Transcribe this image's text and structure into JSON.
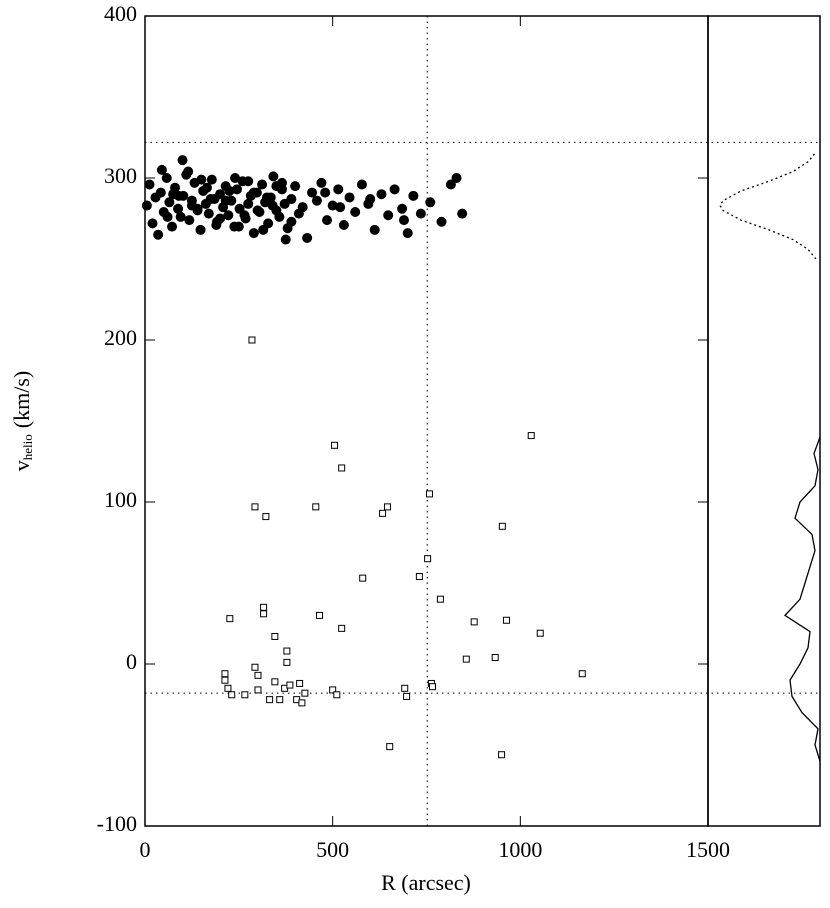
{
  "chart_data": [
    {
      "type": "scatter",
      "xlabel": "R (arcsec)",
      "ylabel": {
        "main": "v",
        "sub": "helio",
        "unit": "(km/s)"
      },
      "xlim": [
        0,
        1500
      ],
      "xticks": [
        0,
        500,
        1000,
        1500
      ],
      "ylim": [
        -100,
        400
      ],
      "yticks": [
        -100,
        0,
        100,
        200,
        300,
        400
      ],
      "hlines": [
        322,
        -18
      ],
      "vlines": [
        752
      ],
      "series": [
        {
          "color": "#000000",
          "marker": "filled-circle",
          "x": [
            5,
            12,
            20,
            28,
            35,
            42,
            50,
            58,
            65,
            72,
            80,
            88,
            95,
            102,
            110,
            118,
            125,
            132,
            140,
            148,
            155,
            162,
            170,
            178,
            185,
            192,
            200,
            208,
            215,
            222,
            230,
            238,
            245,
            252,
            260,
            268,
            275,
            282,
            290,
            298,
            305,
            312,
            320,
            328,
            335,
            342,
            350,
            358,
            365,
            372,
            380,
            390,
            400,
            410,
            420,
            432,
            445,
            458,
            470,
            485,
            500,
            515,
            530,
            545,
            560,
            578,
            595,
            612,
            630,
            648,
            665,
            685,
            700,
            715,
            735,
            760,
            790,
            815,
            845,
            45,
            75,
            100,
            125,
            150,
            175,
            200,
            225,
            250,
            275,
            300,
            325,
            350,
            375,
            60,
            90,
            115,
            140,
            165,
            190,
            215,
            240,
            265,
            290,
            315,
            340,
            365,
            390,
            480,
            520,
            600,
            690,
            830
          ],
          "values": [
            283,
            296,
            272,
            288,
            265,
            291,
            279,
            300,
            285,
            270,
            294,
            281,
            276,
            289,
            302,
            274,
            286,
            297,
            281,
            268,
            292,
            284,
            278,
            299,
            287,
            273,
            290,
            282,
            295,
            277,
            286,
            270,
            293,
            281,
            298,
            275,
            284,
            289,
            266,
            291,
            279,
            296,
            285,
            272,
            288,
            301,
            280,
            276,
            293,
            284,
            269,
            287,
            295,
            278,
            282,
            263,
            291,
            286,
            297,
            274,
            283,
            293,
            271,
            288,
            279,
            296,
            284,
            268,
            290,
            277,
            293,
            281,
            266,
            289,
            278,
            285,
            273,
            296,
            278,
            305,
            290,
            311,
            283,
            299,
            287,
            275,
            292,
            270,
            298,
            280,
            288,
            295,
            262,
            276,
            289,
            304,
            280,
            294,
            271,
            286,
            300,
            277,
            291,
            268,
            283,
            297,
            273,
            291,
            282,
            287,
            274,
            300
          ]
        },
        {
          "color": "#000000",
          "marker": "open-square",
          "x": [
            285,
            505,
            524,
            1029,
            293,
            322,
            455,
            646,
            633,
            758,
            952,
            753,
            731,
            580,
            787,
            316,
            316,
            226,
            465,
            877,
            963,
            1053,
            524,
            346,
            378,
            378,
            856,
            933,
            1165,
            213,
            213,
            221,
            231,
            266,
            293,
            301,
            301,
            346,
            359,
            332,
            372,
            386,
            412,
            426,
            404,
            418,
            500,
            511,
            692,
            697,
            763,
            766,
            652,
            950
          ],
          "values": [
            200,
            135,
            121,
            141,
            97,
            91,
            97,
            97,
            93,
            105,
            85,
            65,
            54,
            53,
            40,
            35,
            31,
            28,
            30,
            26,
            27,
            19,
            22,
            17,
            8,
            1,
            3,
            4,
            -6,
            -6,
            -10,
            -15,
            -19,
            -19,
            -2,
            -7,
            -16,
            -11,
            -22,
            -22,
            -15,
            -13,
            -12,
            -18,
            -22,
            -24,
            -16,
            -19,
            -15,
            -20,
            -12,
            -14,
            -51,
            -56
          ]
        }
      ]
    },
    {
      "type": "line",
      "xlim": [
        1,
        0
      ],
      "ylim": [
        -100,
        400
      ],
      "series": [
        {
          "color": "#000000",
          "style": "dotted",
          "y": [
            250,
            256,
            262,
            268,
            274,
            280,
            283,
            286,
            292,
            298,
            304,
            310,
            316
          ],
          "values": [
            0.04,
            0.12,
            0.27,
            0.51,
            0.79,
            0.97,
            1.0,
            0.97,
            0.79,
            0.51,
            0.27,
            0.12,
            0.04
          ]
        },
        {
          "color": "#000000",
          "style": "solid",
          "y": [
            -60,
            -50,
            -40,
            -30,
            -20,
            -10,
            0,
            10,
            20,
            30,
            40,
            50,
            60,
            70,
            80,
            90,
            100,
            110,
            120,
            130,
            140
          ],
          "values": [
            0.0,
            0.05,
            0.02,
            0.18,
            0.28,
            0.3,
            0.2,
            0.12,
            0.1,
            0.35,
            0.2,
            0.15,
            0.1,
            0.05,
            0.08,
            0.25,
            0.2,
            0.05,
            0.02,
            0.06,
            0.0
          ]
        }
      ]
    }
  ]
}
